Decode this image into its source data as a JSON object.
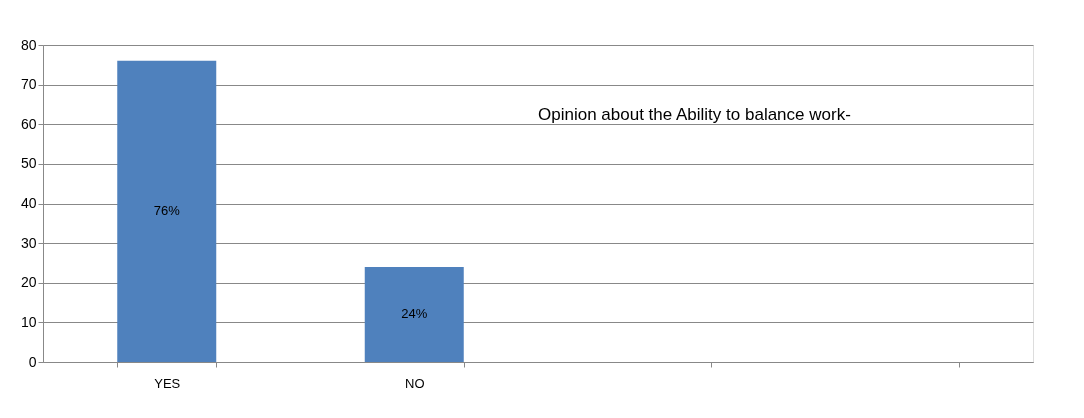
{
  "chart_data": {
    "type": "bar",
    "title": "Opinion about  the Ability to balance work-",
    "categories": [
      "YES",
      "NO",
      null,
      null
    ],
    "values": [
      76,
      24,
      null,
      null
    ],
    "color": "#4f81bd",
    "value_labels": [
      "76%",
      "24%",
      null,
      null
    ],
    "ylim": [
      0,
      80
    ],
    "yticks": [
      0,
      10,
      20,
      30,
      40,
      50,
      60,
      70,
      80
    ],
    "grid": "y"
  }
}
